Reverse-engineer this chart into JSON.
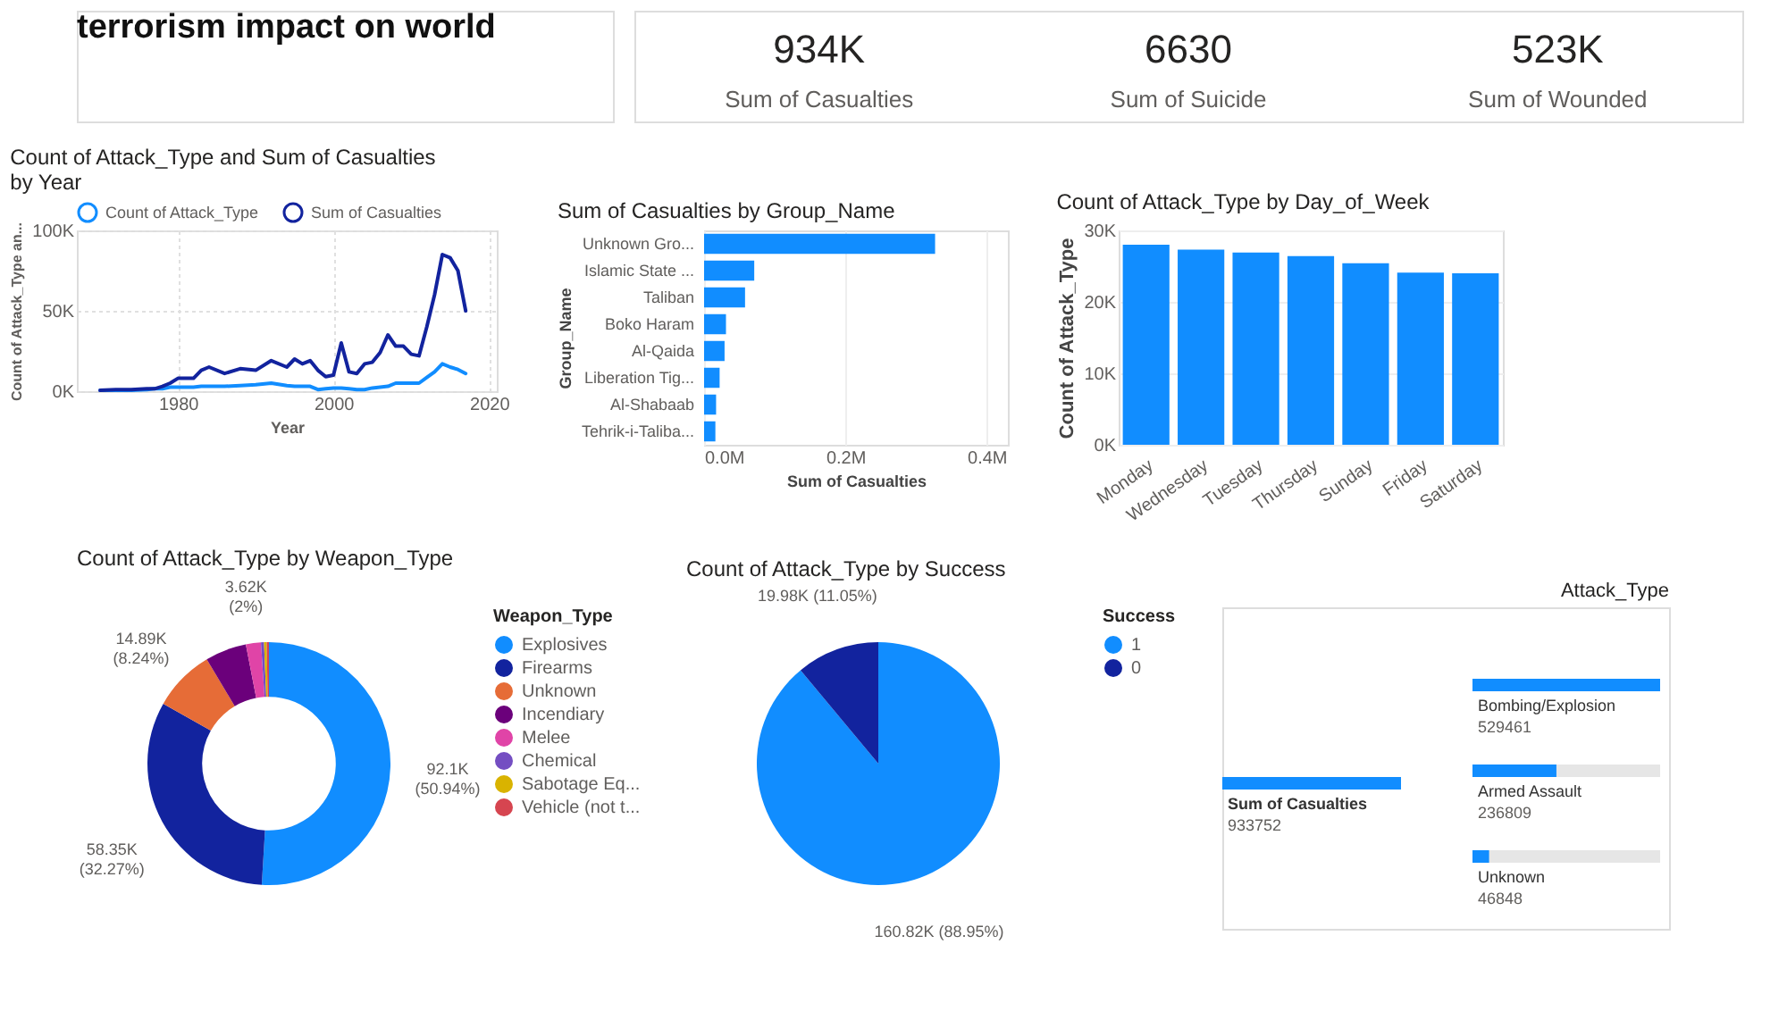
{
  "chart_data": [
    {
      "type": "other",
      "title": "terrorism impact on world",
      "categories": [
        "Sum of Casualties",
        "Sum of Suicide",
        "Sum of Wounded"
      ],
      "value_labels": [
        "934K",
        "6630",
        "523K"
      ]
    },
    {
      "type": "line",
      "title": "Count of Attack_Type and Sum of Casualties by Year",
      "xlabel": "Year",
      "ylabel": "Count of Attack_Type an...",
      "x": [
        1970,
        1972,
        1974,
        1976,
        1977,
        1978,
        1979,
        1980,
        1982,
        1983,
        1984,
        1986,
        1988,
        1990,
        1992,
        1994,
        1995,
        1996,
        1997,
        1998,
        1999,
        2000,
        2001,
        2002,
        2003,
        2004,
        2005,
        2006,
        2007,
        2008,
        2009,
        2010,
        2011,
        2012,
        2013,
        2014,
        2015,
        2016,
        2017
      ],
      "series": [
        {
          "name": "Count of Attack_Type",
          "color": "#118dff",
          "values": [
            500,
            500,
            500,
            1000,
            1500,
            1500,
            2500,
            2500,
            2500,
            3000,
            3000,
            3000,
            3500,
            4000,
            5000,
            3500,
            3000,
            3000,
            3000,
            1000,
            1500,
            2000,
            2000,
            1500,
            1000,
            1000,
            2000,
            2500,
            3000,
            5000,
            5000,
            5000,
            5000,
            8500,
            12000,
            17000,
            15000,
            13500,
            11000
          ]
        },
        {
          "name": "Sum of Casualties",
          "color": "#12239e",
          "values": [
            500,
            1000,
            1000,
            1500,
            1500,
            3000,
            5000,
            8000,
            8000,
            13000,
            15000,
            11000,
            14000,
            13000,
            19000,
            15000,
            20000,
            17000,
            19000,
            13000,
            9000,
            10000,
            30000,
            12000,
            11000,
            17000,
            18000,
            24000,
            35000,
            28000,
            28000,
            23000,
            22000,
            40000,
            60000,
            85000,
            83000,
            75000,
            50000
          ]
        }
      ],
      "xlim": [
        1967,
        2021
      ],
      "xticks": [
        1980,
        2000,
        2020
      ],
      "ylim": [
        0,
        100000
      ],
      "yticks": [
        {
          "value": 0,
          "label": "0K"
        },
        {
          "value": 50000,
          "label": "50K"
        },
        {
          "value": 100000,
          "label": "100K"
        }
      ],
      "grid": true,
      "legend": "top left",
      "marker": "none",
      "line_style": "solid"
    },
    {
      "type": "bar",
      "orientation": "horizontal",
      "title": "Sum of Casualties by Group_Name",
      "xlabel": "Sum of Casualties",
      "ylabel": "Group_Name",
      "categories": [
        "Unknown Gro...",
        "Islamic State ...",
        "Taliban",
        "Boko Haram",
        "Al-Qaida",
        "Liberation Tig...",
        "Al-Shabaab",
        "Tehrik-i-Taliba..."
      ],
      "values": [
        327000,
        71000,
        58000,
        31000,
        29000,
        22000,
        17000,
        16000
      ],
      "color": "#118dff",
      "xlim": [
        0,
        430000
      ],
      "xticks": [
        {
          "value": 0,
          "label": "0.0M"
        },
        {
          "value": 200000,
          "label": "0.2M"
        },
        {
          "value": 400000,
          "label": "0.4M"
        }
      ],
      "grid": "x"
    },
    {
      "type": "bar",
      "title": "Count of Attack_Type by Day_of_Week",
      "ylabel": "Count of Attack_Type",
      "categories": [
        "Monday",
        "Wednesday",
        "Tuesday",
        "Thursday",
        "Sunday",
        "Friday",
        "Saturday"
      ],
      "values": [
        28000,
        27300,
        26900,
        26400,
        25400,
        24100,
        24000
      ],
      "color": "#118dff",
      "ylim": [
        0,
        30000
      ],
      "yticks": [
        {
          "value": 0,
          "label": "0K"
        },
        {
          "value": 10000,
          "label": "10K"
        },
        {
          "value": 20000,
          "label": "20K"
        },
        {
          "value": 30000,
          "label": "30K"
        }
      ],
      "grid": "y"
    },
    {
      "type": "donut",
      "title": "Count of Attack_Type by Weapon_Type",
      "legend_title": "Weapon_Type",
      "legend": "right",
      "categories": [
        "Explosives",
        "Firearms",
        "Unknown",
        "Incendiary",
        "Melee",
        "Chemical",
        "Sabotage Eq...",
        "Vehicle (not t..."
      ],
      "values": [
        50.94,
        32.27,
        8.24,
        5.5,
        2,
        0.4,
        0.35,
        0.3
      ],
      "colors": [
        "#118dff",
        "#12239e",
        "#e66c37",
        "#6b007b",
        "#e044a7",
        "#744ec2",
        "#d9b300",
        "#d64550"
      ],
      "value_labels": [
        "92.1K\n(50.94%)",
        "58.35K\n(32.27%)",
        "14.89K\n(8.24%)",
        null,
        "3.62K\n(2%)",
        null,
        null,
        null
      ]
    },
    {
      "type": "pie",
      "title": "Count of Attack_Type by Success",
      "legend_title": "Success",
      "legend": "right",
      "categories": [
        "1",
        "0"
      ],
      "values": [
        160820,
        19980
      ],
      "colors": [
        "#118dff",
        "#12239e"
      ],
      "value_labels": [
        "160.82K (88.95%)",
        "19.98K (11.05%)"
      ]
    },
    {
      "type": "other",
      "title": "Attack_Type",
      "categories": [
        "Sum of Casualties",
        "Bombing/Explosion",
        "Armed Assault",
        "Unknown"
      ],
      "values": [
        933752,
        529461,
        236809,
        46848
      ],
      "color": "#118dff",
      "data_labels": true
    }
  ]
}
